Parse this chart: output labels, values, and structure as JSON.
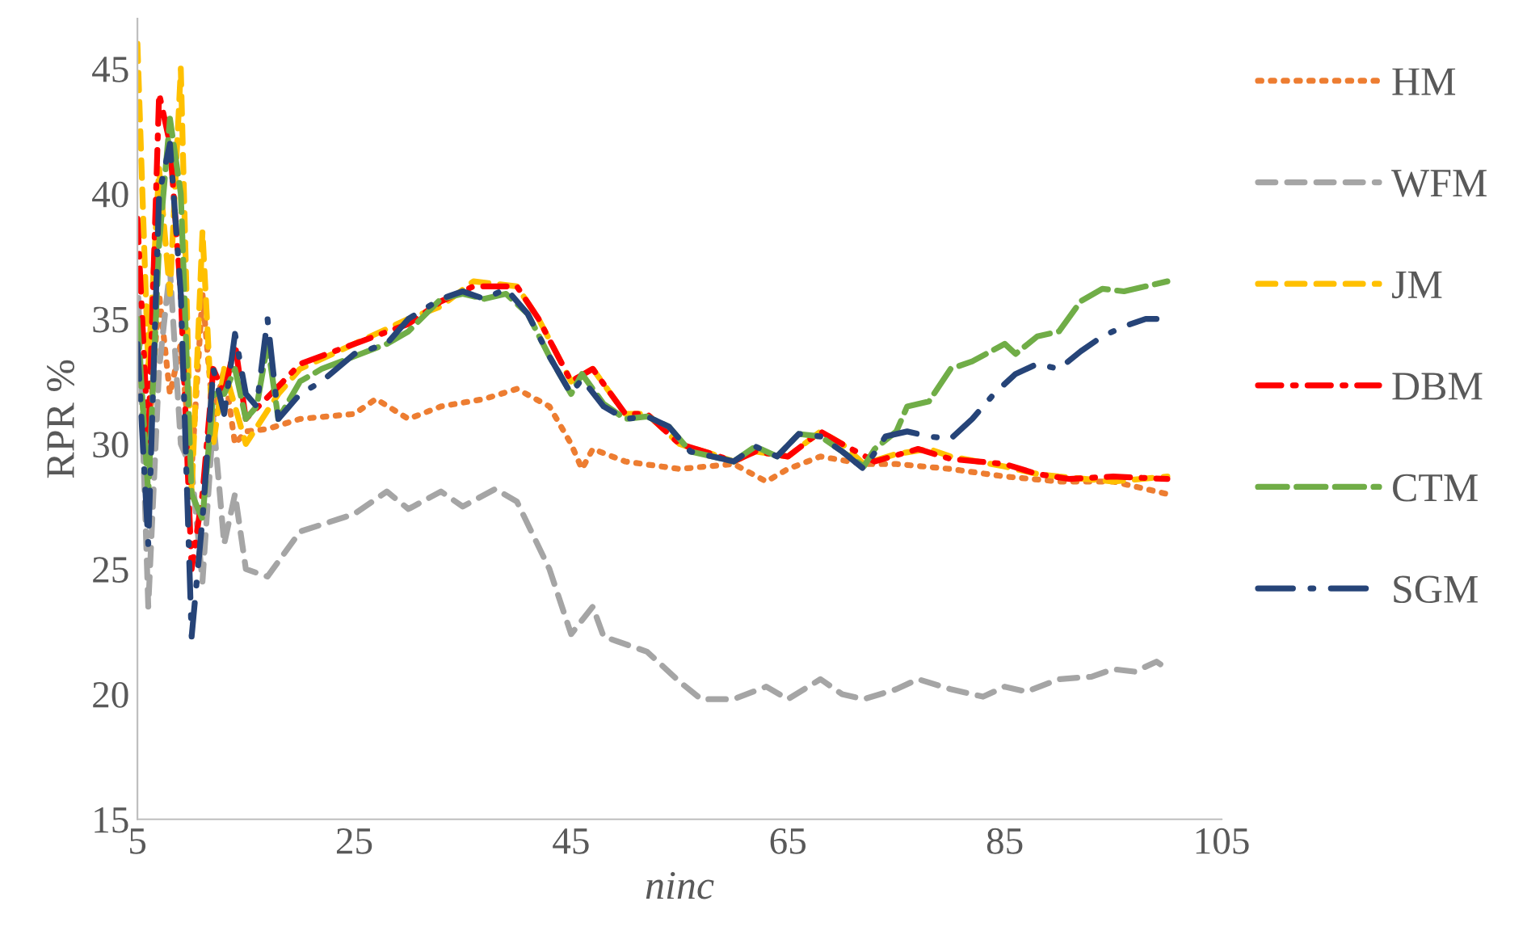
{
  "chart_data": {
    "type": "line",
    "xlabel": "ninc",
    "ylabel": "RPR %",
    "xlim": [
      5,
      105
    ],
    "xticks": [
      5,
      25,
      45,
      65,
      85,
      105
    ],
    "ylim": [
      15,
      47
    ],
    "yticks": [
      15,
      20,
      25,
      30,
      35,
      40,
      45
    ],
    "grid": false,
    "legend": "right",
    "marker": "none",
    "series": [
      {
        "name": "HM",
        "color": "#ed7d31",
        "line_style": "dotted",
        "x": [
          5,
          6,
          7,
          8,
          9,
          10,
          11,
          12,
          13,
          14,
          15,
          17,
          20,
          25,
          27,
          30,
          33,
          37,
          40,
          43,
          45,
          46,
          47,
          50,
          55,
          60,
          63,
          65,
          68,
          72,
          75,
          80,
          85,
          90,
          95,
          100
        ],
        "values": [
          33,
          30,
          36,
          32,
          34,
          29,
          36,
          31,
          33,
          30,
          30.5,
          30.6,
          31,
          31.2,
          31.8,
          31,
          31.5,
          31.8,
          32.2,
          31.5,
          30,
          29,
          29.8,
          29.3,
          29,
          29.2,
          28.5,
          29,
          29.5,
          29.2,
          29.2,
          29,
          28.7,
          28.5,
          28.5,
          28
        ]
      },
      {
        "name": "WFM",
        "color": "#a5a5a5",
        "line_style": "dashed",
        "x": [
          5,
          6,
          7,
          8,
          9,
          10,
          11,
          12,
          13,
          14,
          15,
          17,
          20,
          25,
          28,
          30,
          33,
          35,
          38,
          40,
          43,
          45,
          47,
          48,
          52,
          55,
          57,
          60,
          63,
          65,
          68,
          70,
          72,
          75,
          77,
          80,
          83,
          85,
          87,
          90,
          93,
          95,
          97,
          99,
          100
        ],
        "values": [
          37,
          23.5,
          33,
          37,
          30,
          29,
          24.5,
          31,
          26,
          28,
          25,
          24.7,
          26.5,
          27.2,
          28.1,
          27.4,
          28.1,
          27.5,
          28.2,
          27.7,
          25,
          22.4,
          23.5,
          22.3,
          21.7,
          20.5,
          19.8,
          19.8,
          20.3,
          19.8,
          20.6,
          20,
          19.8,
          20.2,
          20.6,
          20.2,
          19.9,
          20.3,
          20.1,
          20.6,
          20.7,
          21,
          20.9,
          21.3,
          21
        ]
      },
      {
        "name": "JM",
        "color": "#ffc000",
        "line_style": "dashed",
        "x": [
          5,
          6,
          7,
          8,
          9,
          10,
          11,
          12,
          13,
          14,
          15,
          18,
          20,
          25,
          30,
          33,
          36,
          40,
          42,
          45,
          47,
          50,
          52,
          55,
          58,
          60,
          62,
          65,
          68,
          70,
          72,
          75,
          78,
          80,
          85,
          88,
          90,
          95,
          100
        ],
        "values": [
          46,
          33,
          41,
          36,
          45,
          28,
          38.5,
          30,
          33,
          31.5,
          30,
          32,
          33,
          34,
          35,
          35.5,
          36.5,
          36.3,
          35,
          32.5,
          33,
          31.2,
          31.2,
          30,
          29.6,
          29.3,
          29.7,
          29.5,
          30.5,
          30,
          29.2,
          29.6,
          29.8,
          29.5,
          29.1,
          28.8,
          28.7,
          28.5,
          28.7
        ]
      },
      {
        "name": "DBM",
        "color": "#ff0000",
        "line_style": "dashdot",
        "x": [
          5,
          6,
          7,
          8,
          9,
          10,
          11,
          12,
          13,
          14,
          15,
          18,
          20,
          25,
          30,
          33,
          36,
          40,
          42,
          45,
          47,
          50,
          52,
          55,
          58,
          60,
          62,
          65,
          68,
          70,
          73,
          77,
          80,
          85,
          88,
          91,
          95,
          100
        ],
        "values": [
          39,
          30,
          44,
          42,
          36,
          25,
          28,
          33,
          32,
          34,
          31,
          32.3,
          33.2,
          34,
          34.8,
          35.7,
          36.3,
          36.3,
          35,
          32.5,
          33,
          31.2,
          31.2,
          30,
          29.6,
          29.3,
          29.7,
          29.5,
          30.5,
          30,
          29.3,
          29.8,
          29.4,
          29.2,
          28.8,
          28.6,
          28.7,
          28.6
        ]
      },
      {
        "name": "CTM",
        "color": "#70ad47",
        "line_style": "longdash",
        "x": [
          5,
          6,
          7,
          8,
          9,
          10,
          11,
          12,
          13,
          14,
          15,
          16,
          17,
          18,
          20,
          22,
          25,
          28,
          30,
          33,
          35,
          37,
          39,
          41,
          43,
          45,
          46,
          48,
          50,
          52,
          54,
          56,
          58,
          60,
          62,
          64,
          66,
          68,
          70,
          72,
          73,
          75,
          76,
          78,
          80,
          82,
          85,
          86,
          88,
          90,
          92,
          94,
          96,
          100
        ],
        "values": [
          35,
          28,
          38,
          43,
          40,
          28,
          27,
          32,
          32,
          33,
          31,
          31.5,
          34,
          31,
          32.5,
          33,
          33.5,
          34,
          34.5,
          35.8,
          36,
          35.8,
          36,
          35.2,
          33.5,
          32,
          32.8,
          31.6,
          31,
          31.1,
          30.7,
          29.7,
          29.5,
          29.3,
          29.9,
          29.5,
          30.4,
          30.3,
          29.7,
          29.1,
          29.8,
          30.5,
          31.5,
          31.7,
          33,
          33.3,
          34,
          33.6,
          34.3,
          34.5,
          35.7,
          36.2,
          36.1,
          36.5
        ]
      },
      {
        "name": "SGM",
        "color": "#264478",
        "line_style": "longdashdot",
        "x": [
          5,
          6,
          7,
          8,
          9,
          10,
          11,
          12,
          13,
          14,
          15,
          16,
          17,
          18,
          20,
          22,
          25,
          28,
          30,
          33,
          35,
          37,
          39,
          41,
          43,
          45,
          46,
          48,
          50,
          52,
          54,
          56,
          58,
          60,
          62,
          64,
          66,
          68,
          70,
          72,
          74,
          76,
          78,
          80,
          82,
          84,
          86,
          88,
          90,
          92,
          94,
          96,
          98,
          99
        ],
        "values": [
          34,
          26,
          40,
          42,
          36,
          22.3,
          27,
          33,
          31.2,
          34.4,
          32,
          31.5,
          35,
          31,
          32,
          32.5,
          33.6,
          34,
          35,
          35.8,
          36.1,
          35.8,
          36.2,
          35.2,
          33.5,
          32,
          32.6,
          31.5,
          31,
          31.1,
          30.7,
          29.7,
          29.5,
          29.3,
          29.9,
          29.5,
          30.4,
          30.3,
          29.7,
          29,
          30.3,
          30.5,
          30.3,
          30.2,
          31,
          32,
          32.8,
          33.2,
          33,
          33.7,
          34.3,
          34.7,
          35,
          35
        ]
      }
    ]
  }
}
